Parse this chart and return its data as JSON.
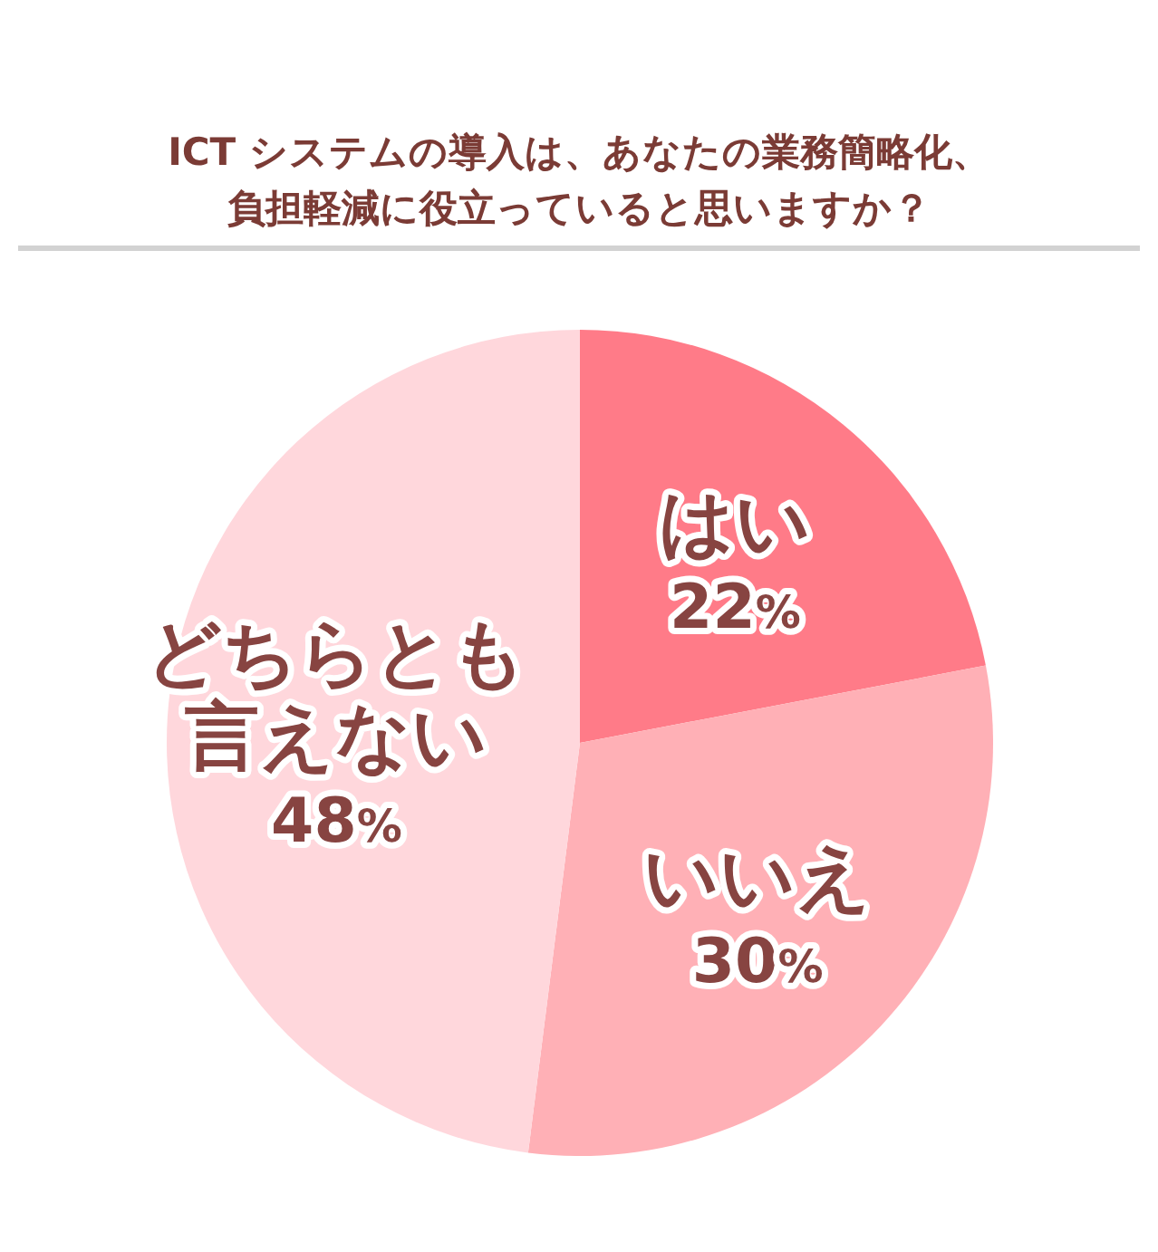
{
  "chart_data": {
    "type": "pie",
    "title": "ICT システムの導入は、あなたの業務簡略化、負担軽減に役立っていると思いますか？",
    "categories": [
      "はい",
      "いいえ",
      "どちらとも言えない"
    ],
    "values": [
      22,
      30,
      48
    ],
    "colors": [
      "#ff7b88",
      "#ffb0b6",
      "#ffd7dc"
    ],
    "value_labels": [
      "22%",
      "30%",
      "48%"
    ]
  }
}
